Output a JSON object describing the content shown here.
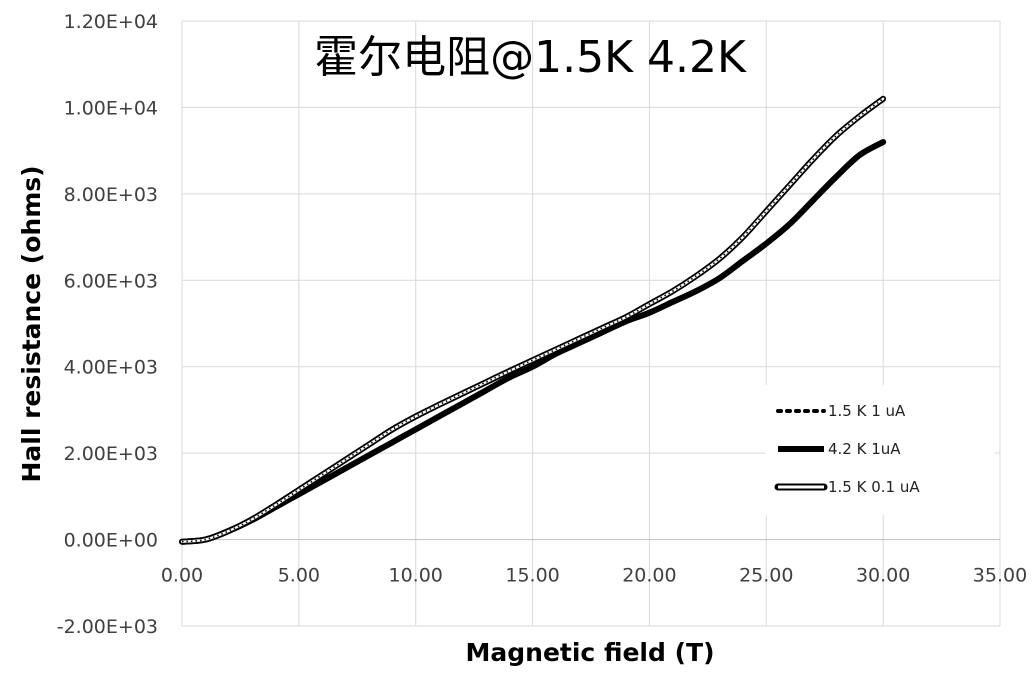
{
  "chart_data": {
    "type": "line",
    "title": "霍尔电阻@1.5K 4.2K",
    "xlabel": "Magnetic field (T)",
    "ylabel": "Hall resistance (ohms)",
    "xlim": [
      0,
      35
    ],
    "ylim": [
      -2000,
      12000
    ],
    "x_ticks": [
      "0.00",
      "5.00",
      "10.00",
      "15.00",
      "20.00",
      "25.00",
      "30.00",
      "35.00"
    ],
    "y_ticks": [
      "-2.00E+03",
      "0.00E+00",
      "2.00E+03",
      "4.00E+03",
      "6.00E+03",
      "8.00E+03",
      "1.00E+04",
      "1.20E+04"
    ],
    "grid": true,
    "legend_position": "right",
    "series": [
      {
        "name": "1.5 K 1 uA",
        "style": "dotted",
        "x": [
          0,
          1,
          2,
          3,
          4,
          5,
          6,
          7,
          8,
          9,
          10,
          11,
          12,
          13,
          14,
          15,
          16,
          17,
          18,
          19,
          20,
          21,
          22,
          23,
          24,
          25,
          26,
          27,
          28,
          29,
          30
        ],
        "y": [
          -50,
          0,
          200,
          470,
          800,
          1150,
          1500,
          1850,
          2200,
          2550,
          2850,
          3120,
          3380,
          3640,
          3900,
          4150,
          4400,
          4650,
          4900,
          5150,
          5450,
          5750,
          6100,
          6500,
          7000,
          7600,
          8200,
          8800,
          9350,
          9800,
          10200
        ]
      },
      {
        "name": "4.2 K 1uA",
        "style": "solid-thick",
        "x": [
          0,
          1,
          2,
          3,
          4,
          5,
          6,
          7,
          8,
          9,
          10,
          11,
          12,
          13,
          14,
          15,
          16,
          17,
          18,
          19,
          20,
          21,
          22,
          23,
          24,
          25,
          26,
          27,
          28,
          29,
          30
        ],
        "y": [
          -50,
          0,
          200,
          450,
          750,
          1050,
          1350,
          1650,
          1950,
          2250,
          2550,
          2850,
          3150,
          3450,
          3750,
          4000,
          4300,
          4550,
          4800,
          5050,
          5250,
          5500,
          5750,
          6050,
          6450,
          6850,
          7300,
          7850,
          8400,
          8900,
          9200
        ]
      },
      {
        "name": "1.5 K 0.1 uA",
        "style": "double-outline",
        "x": [
          0,
          1,
          2,
          3,
          4,
          5,
          6,
          7,
          8,
          9,
          10,
          11,
          12,
          13,
          14,
          15,
          16,
          17,
          18,
          19,
          20,
          21,
          22,
          23,
          24,
          25,
          26,
          27,
          28,
          29,
          30
        ],
        "y": [
          -50,
          0,
          200,
          470,
          800,
          1150,
          1500,
          1850,
          2200,
          2550,
          2850,
          3120,
          3380,
          3640,
          3900,
          4150,
          4400,
          4650,
          4900,
          5150,
          5450,
          5750,
          6100,
          6500,
          7000,
          7600,
          8200,
          8800,
          9350,
          9800,
          10200
        ]
      }
    ]
  },
  "colors": {
    "line": "#000000",
    "grid": "#d9d9d9",
    "axis_text": "#404040"
  }
}
